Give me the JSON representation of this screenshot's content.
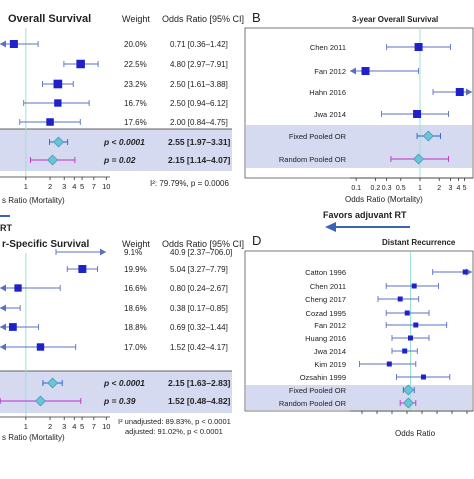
{
  "colors": {
    "marker": "#1f22c8",
    "ci_line": "#5a6fc4",
    "pooled_fill": "#64c7d6",
    "fixed_ci": "#2a5fd0",
    "random_ci": "#c02fc8",
    "highlight": "#d5daf0",
    "ref_line": "#9be0d5",
    "axis": "#333333",
    "favors_arrow": "#3a64b4"
  },
  "panel_a": {
    "title": "Overall Survival",
    "header_weight": "Weight",
    "header_or": "Odds Ratio [95% CI]",
    "weights": [
      "20.0%",
      "22.5%",
      "23.2%",
      "16.7%",
      "17.6%"
    ],
    "ors": [
      "0.71 [0.36–1.42]",
      "4.80 [2.97–7.91]",
      "2.50 [1.61–3.88]",
      "2.50 [0.94–6.12]",
      "2.00 [0.84–4.75]"
    ],
    "pooled_p": [
      "p < 0.0001",
      "p = 0.02"
    ],
    "pooled_or": [
      "2.55 [1.97–3.31]",
      "2.15 [1.14–4.07]"
    ],
    "het": "I²: 79.79%, p = 0.0006",
    "xlabel": "s Ratio (Mortality)",
    "favors": "RT"
  },
  "panel_b": {
    "letter": "B",
    "title": "3-year Overall Survival",
    "xlabel": "Odds Ratio (Mortality)",
    "favors": "Favors adjuvant RT"
  },
  "panel_c": {
    "title": "r-Specific Survival",
    "header_weight": "Weight",
    "header_or": "Odds Ratio [95% CI]",
    "weights": [
      "9.1%",
      "19.9%",
      "16.6%",
      "18.6%",
      "18.8%",
      "17.0%"
    ],
    "ors": [
      "40.9 [2.37–706.0]",
      "5.04 [3.27–7.79]",
      "0.80 [0.24–2.67]",
      "0.38 [0.17–0.85]",
      "0.69 [0.32–1.44]",
      "1.52 [0.42–4.17]"
    ],
    "pooled_p": [
      "p < 0.0001",
      "p = 0.39"
    ],
    "pooled_or": [
      "2.15 [1.63–2.83]",
      "1.52 [0.48–4.82]"
    ],
    "het1": "I² unadjusted: 89.83%, p < 0.0001",
    "het2": "adjusted:    91.02%, p < 0.0001",
    "xlabel": "s Ratio (Mortality)"
  },
  "panel_d": {
    "letter": "D",
    "title": "Distant Recurrence",
    "xlabel": "Odds Ratio"
  },
  "chart_data": [
    {
      "type": "forest",
      "title": "Overall Survival",
      "xlabel": "Odds Ratio (Mortality)",
      "xscale": "log",
      "x_ticks": [
        "1",
        "2",
        "3",
        "4",
        "5",
        "7",
        "10"
      ],
      "studies": [
        {
          "or": 0.71,
          "lo": 0.36,
          "hi": 1.42,
          "weight": 20.0
        },
        {
          "or": 4.8,
          "lo": 2.97,
          "hi": 7.91,
          "weight": 22.5
        },
        {
          "or": 2.5,
          "lo": 1.61,
          "hi": 3.88,
          "weight": 23.2
        },
        {
          "or": 2.5,
          "lo": 0.94,
          "hi": 6.12,
          "weight": 16.7
        },
        {
          "or": 2.0,
          "lo": 0.84,
          "hi": 4.75,
          "weight": 17.6
        }
      ],
      "pooled": [
        {
          "or": 2.55,
          "lo": 1.97,
          "hi": 3.31,
          "p": "p < 0.0001"
        },
        {
          "or": 2.15,
          "lo": 1.14,
          "hi": 4.07,
          "p": "p = 0.02"
        }
      ],
      "heterogeneity": "I²: 79.79%, p = 0.0006"
    },
    {
      "type": "forest",
      "title": "3-year Overall Survival",
      "xlabel": "Odds Ratio (Mortality)",
      "xscale": "log",
      "x_ticks": [
        "0.1",
        "0.2",
        "0.3",
        "0.5",
        "1",
        "2",
        "3",
        "4",
        "5"
      ],
      "studies": [
        {
          "name": "Chen 2011",
          "or": 0.95,
          "lo": 0.3,
          "hi": 3.0
        },
        {
          "name": "Fan 2012",
          "or": 0.14,
          "lo": 0.06,
          "hi": 0.95
        },
        {
          "name": "Hahn 2016",
          "or": 4.2,
          "lo": 1.6,
          "hi": 9.0
        },
        {
          "name": "Jwa 2014",
          "or": 0.9,
          "lo": 0.25,
          "hi": 2.8
        }
      ],
      "pooled": [
        {
          "name": "Fixed Pooled OR",
          "or": 1.35,
          "lo": 0.9,
          "hi": 2.1
        },
        {
          "name": "Random Pooled OR",
          "or": 0.95,
          "lo": 0.35,
          "hi": 2.8
        }
      ]
    },
    {
      "type": "forest",
      "title": "Cancer-Specific Survival",
      "xlabel": "Odds Ratio (Mortality)",
      "xscale": "log",
      "x_ticks": [
        "1",
        "2",
        "3",
        "4",
        "5",
        "7",
        "10"
      ],
      "studies": [
        {
          "or": 40.9,
          "lo": 2.37,
          "hi": 706.0,
          "weight": 9.1
        },
        {
          "or": 5.04,
          "lo": 3.27,
          "hi": 7.79,
          "weight": 19.9
        },
        {
          "or": 0.8,
          "lo": 0.24,
          "hi": 2.67,
          "weight": 16.6
        },
        {
          "or": 0.38,
          "lo": 0.17,
          "hi": 0.85,
          "weight": 18.6
        },
        {
          "or": 0.69,
          "lo": 0.32,
          "hi": 1.44,
          "weight": 18.8
        },
        {
          "or": 1.52,
          "lo": 0.42,
          "hi": 4.17,
          "weight": 17.0
        }
      ],
      "pooled": [
        {
          "or": 2.15,
          "lo": 1.63,
          "hi": 2.83,
          "p": "p < 0.0001"
        },
        {
          "or": 1.52,
          "lo": 0.48,
          "hi": 4.82,
          "p": "p = 0.39"
        }
      ],
      "heterogeneity": [
        "I² unadjusted: 89.83%, p < 0.0001",
        "adjusted: 91.02%, p < 0.0001"
      ]
    },
    {
      "type": "forest",
      "title": "Distant Recurrence",
      "xlabel": "Odds Ratio",
      "xscale": "log",
      "studies": [
        {
          "name": "Catton 1996",
          "or": 15.0,
          "lo": 3.0,
          "hi": 60.0
        },
        {
          "name": "Chen 2011",
          "or": 1.2,
          "lo": 0.3,
          "hi": 4.0
        },
        {
          "name": "Cheng 2017",
          "or": 0.6,
          "lo": 0.2,
          "hi": 1.5
        },
        {
          "name": "Cozad 1995",
          "or": 0.85,
          "lo": 0.3,
          "hi": 2.5
        },
        {
          "name": "Fan 2012",
          "or": 1.3,
          "lo": 0.3,
          "hi": 6.0
        },
        {
          "name": "Huang 2016",
          "or": 1.0,
          "lo": 0.4,
          "hi": 2.5
        },
        {
          "name": "Jwa 2014",
          "or": 0.75,
          "lo": 0.4,
          "hi": 1.4
        },
        {
          "name": "Kim 2019",
          "or": 0.35,
          "lo": 0.08,
          "hi": 1.3
        },
        {
          "name": "Ozsahin 1999",
          "or": 1.9,
          "lo": 0.5,
          "hi": 7.0
        }
      ],
      "pooled": [
        {
          "name": "Fixed Pooled OR",
          "or": 0.9,
          "lo": 0.7,
          "hi": 1.2
        },
        {
          "name": "Random Pooled OR",
          "or": 0.9,
          "lo": 0.6,
          "hi": 1.3
        }
      ]
    }
  ]
}
